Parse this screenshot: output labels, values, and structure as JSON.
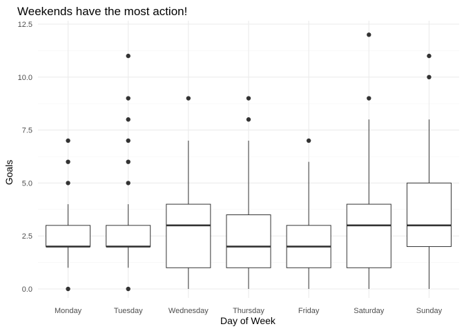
{
  "chart_data": {
    "type": "boxplot",
    "title": "Weekends have the most action!",
    "xlabel": "Day of Week",
    "ylabel": "Goals",
    "ylim": [
      -0.6,
      12.5
    ],
    "yticks": [
      0.0,
      2.5,
      5.0,
      7.5,
      10.0,
      12.5
    ],
    "ytick_labels": [
      "0.0",
      "2.5",
      "5.0",
      "7.5",
      "10.0",
      "12.5"
    ],
    "grid": true,
    "theme": "minimal",
    "box_color": "#333333",
    "outlier_color": "#333333",
    "grid_major_color": "#ebebeb",
    "grid_minor_color": "#f5f5f5",
    "categories": [
      "Monday",
      "Tuesday",
      "Wednesday",
      "Thursday",
      "Friday",
      "Saturday",
      "Sunday"
    ],
    "boxes": [
      {
        "category": "Monday",
        "whisker_low": 1,
        "q1": 2,
        "median": 2,
        "q3": 3,
        "whisker_high": 4,
        "outliers": [
          0,
          5,
          6,
          7
        ]
      },
      {
        "category": "Tuesday",
        "whisker_low": 1,
        "q1": 2,
        "median": 2,
        "q3": 3,
        "whisker_high": 4,
        "outliers": [
          0,
          5,
          6,
          7,
          8,
          9,
          11
        ]
      },
      {
        "category": "Wednesday",
        "whisker_low": 0,
        "q1": 1,
        "median": 3,
        "q3": 4,
        "whisker_high": 7,
        "outliers": [
          9
        ]
      },
      {
        "category": "Thursday",
        "whisker_low": 0,
        "q1": 1,
        "median": 2,
        "q3": 3.5,
        "whisker_high": 7,
        "outliers": [
          8,
          9
        ]
      },
      {
        "category": "Friday",
        "whisker_low": 0,
        "q1": 1,
        "median": 2,
        "q3": 3,
        "whisker_high": 6,
        "outliers": [
          7
        ]
      },
      {
        "category": "Saturday",
        "whisker_low": 0,
        "q1": 1,
        "median": 3,
        "q3": 4,
        "whisker_high": 8,
        "outliers": [
          9,
          12
        ]
      },
      {
        "category": "Sunday",
        "whisker_low": 0,
        "q1": 2,
        "median": 3,
        "q3": 5,
        "whisker_high": 8,
        "outliers": [
          10,
          11
        ]
      }
    ]
  }
}
